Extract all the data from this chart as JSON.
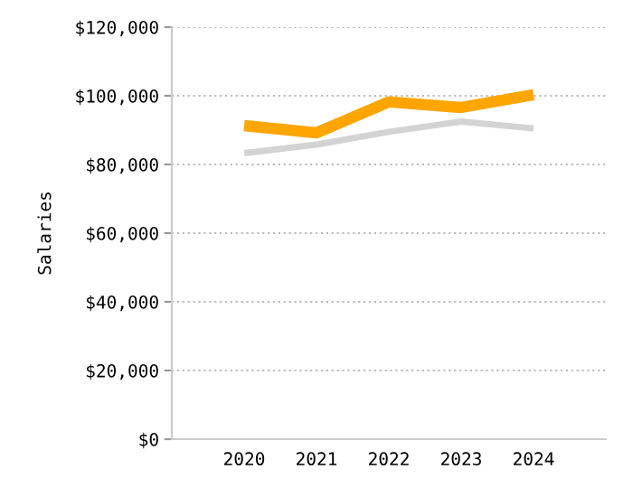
{
  "chart_data": {
    "type": "line",
    "ylabel": "Salaries",
    "categories": [
      "2020",
      "2021",
      "2022",
      "2023",
      "2024"
    ],
    "series": [
      {
        "color": "#ffa500",
        "values": [
          91300,
          89200,
          98200,
          96600,
          100300
        ]
      },
      {
        "color": "#d3d3d3",
        "values": [
          83300,
          85800,
          89500,
          92500,
          90500
        ]
      }
    ],
    "ylim": [
      0,
      120000
    ],
    "yticks": [
      {
        "value": 0,
        "label": "$0"
      },
      {
        "value": 20000,
        "label": "$20,000"
      },
      {
        "value": 40000,
        "label": "$40,000"
      },
      {
        "value": 60000,
        "label": "$60,000"
      },
      {
        "value": 80000,
        "label": "$80,000"
      },
      {
        "value": 100000,
        "label": "$100,000"
      },
      {
        "value": 120000,
        "label": "$120,000"
      }
    ],
    "grid": "y",
    "legend": false,
    "marker": "none",
    "line_style": "solid"
  }
}
